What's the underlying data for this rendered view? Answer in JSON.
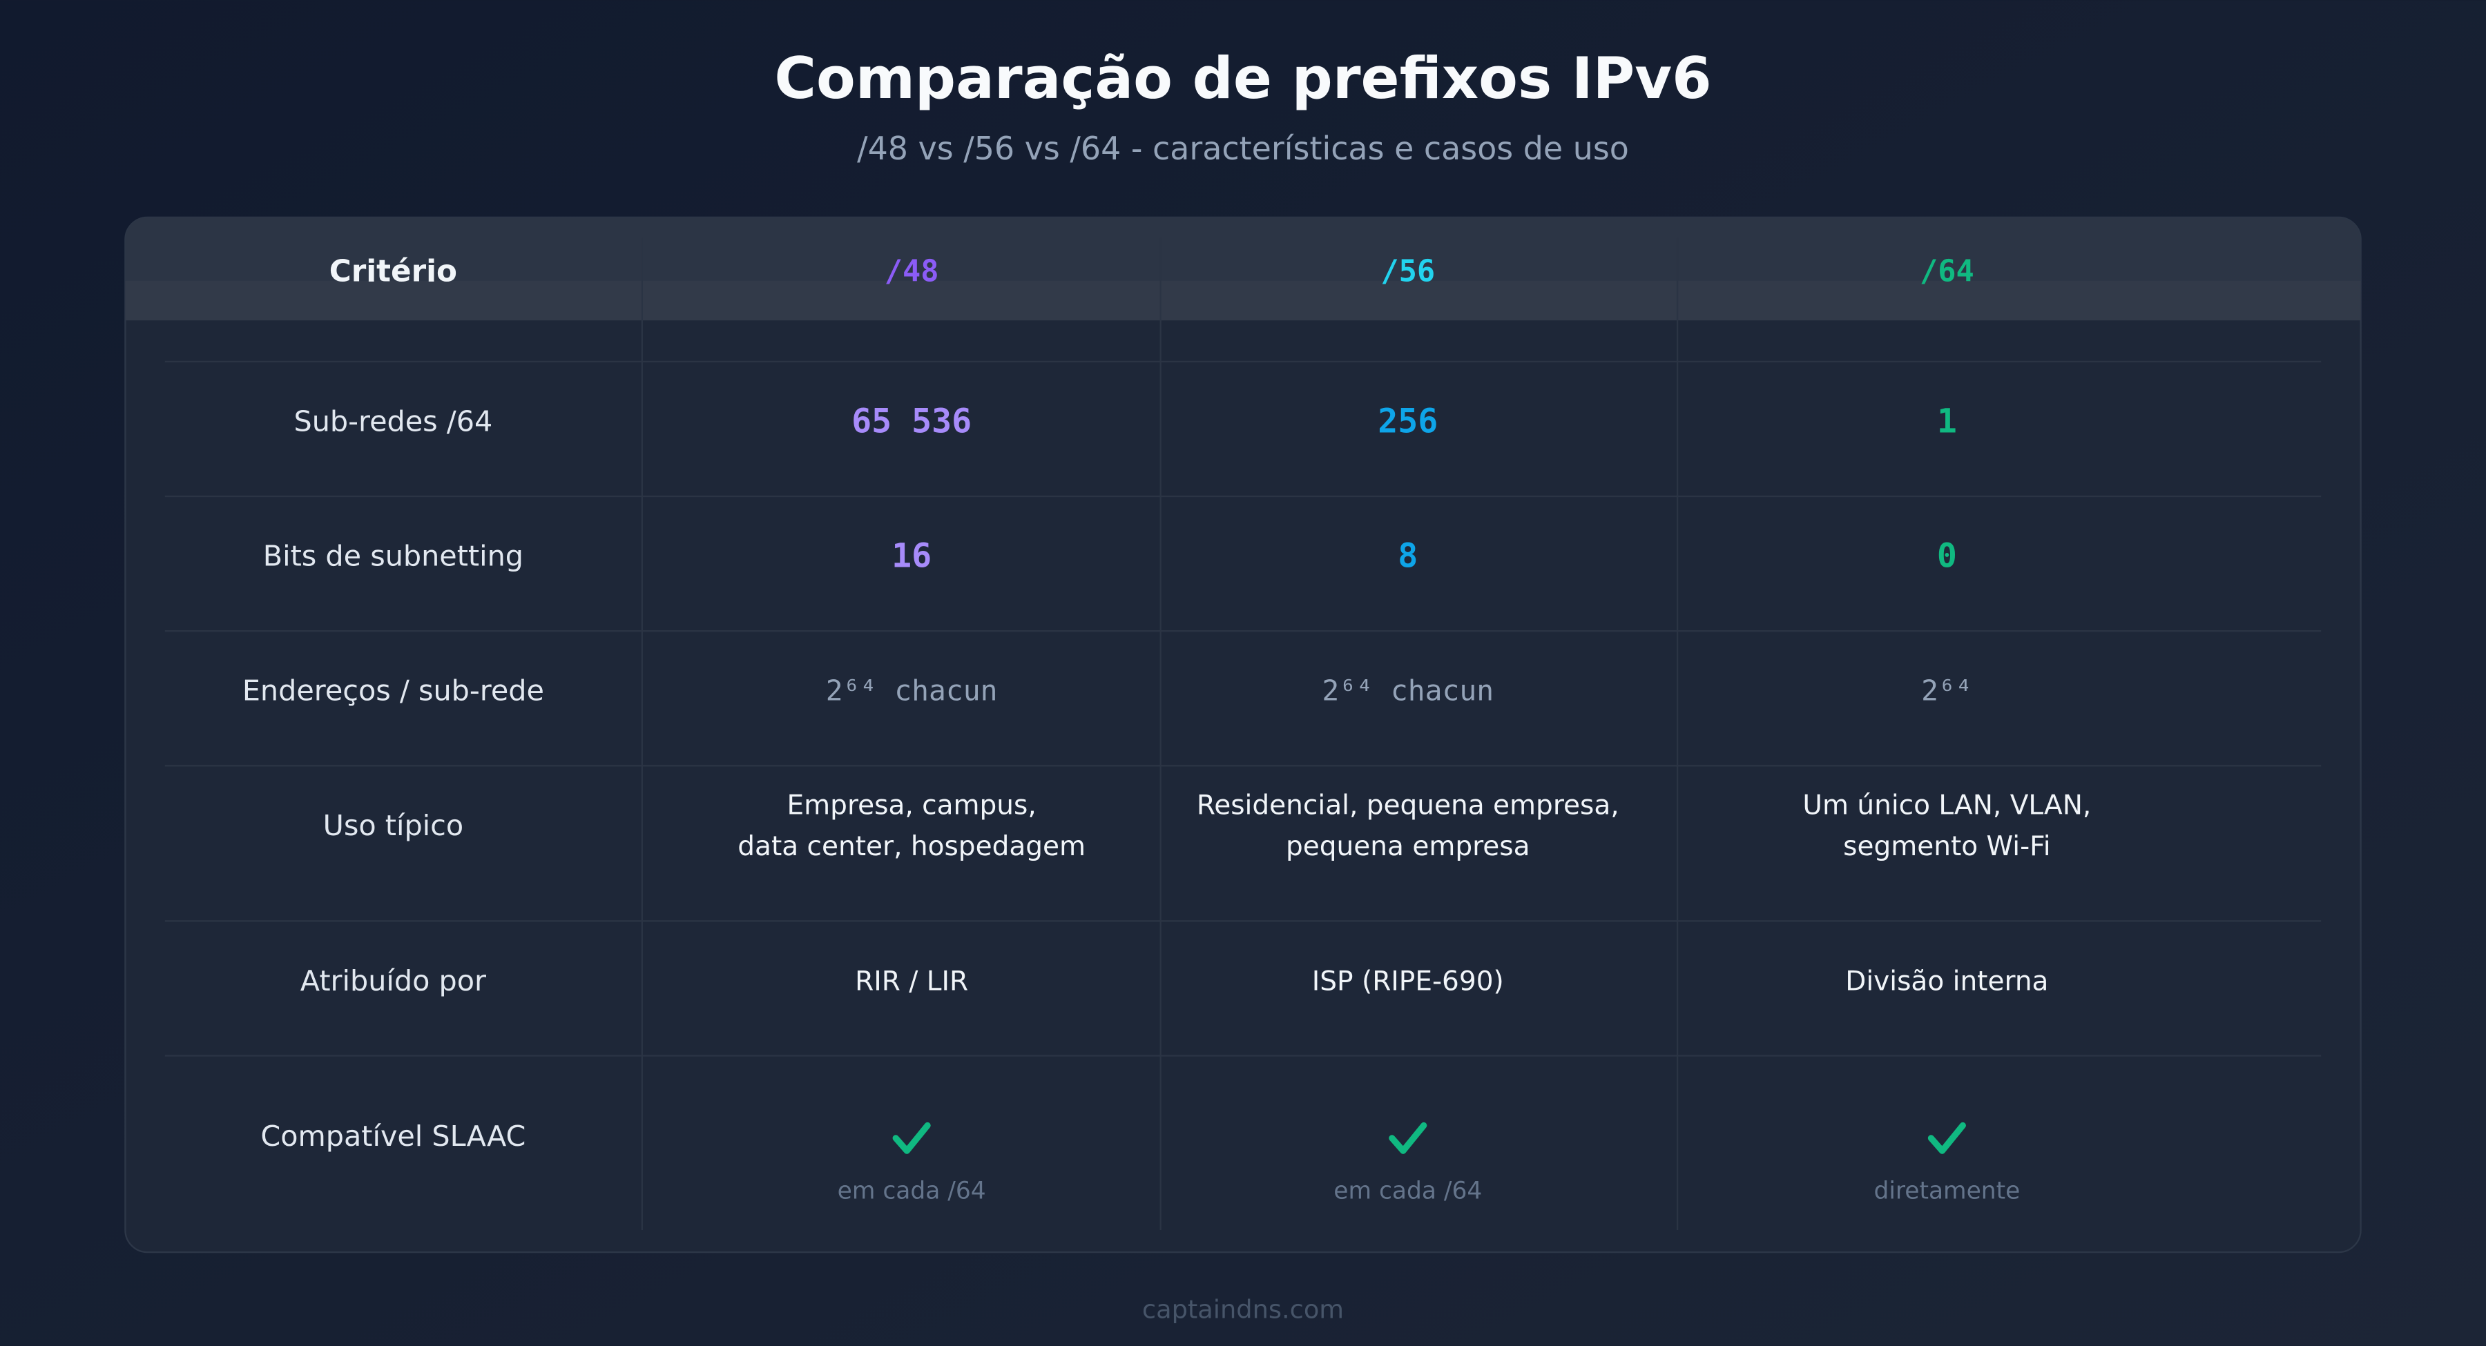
{
  "header": {
    "title": "Comparação de prefixos IPv6",
    "subtitle": "/48 vs /56 vs /64 - características e casos de uso"
  },
  "table": {
    "columns": [
      {
        "label": "Critério",
        "color": "#f1f5f9"
      },
      {
        "label": "/48",
        "color": "#8b5cf6"
      },
      {
        "label": "/56",
        "color": "#22d3ee"
      },
      {
        "label": "/64",
        "color": "#10b981"
      }
    ],
    "rows": [
      {
        "label": "Sub-redes /64",
        "font": "mono",
        "colors": [
          "#a78bfa",
          "#0ea5e9",
          "#10b981"
        ],
        "cells": [
          {
            "lines": [
              "65 536"
            ]
          },
          {
            "lines": [
              "256"
            ]
          },
          {
            "lines": [
              "1"
            ]
          }
        ]
      },
      {
        "label": "Bits de subnetting",
        "font": "mono",
        "colors": [
          "#a78bfa",
          "#0ea5e9",
          "#10b981"
        ],
        "cells": [
          {
            "lines": [
              "16"
            ]
          },
          {
            "lines": [
              "8"
            ]
          },
          {
            "lines": [
              "0"
            ]
          }
        ]
      },
      {
        "label": "Endereços / sub-rede",
        "font": "mono-muted",
        "colors": [
          "#94a3b8",
          "#94a3b8",
          "#94a3b8"
        ],
        "cells": [
          {
            "lines": [
              "2⁶⁴ chacun"
            ]
          },
          {
            "lines": [
              "2⁶⁴ chacun"
            ]
          },
          {
            "lines": [
              "2⁶⁴"
            ]
          }
        ]
      },
      {
        "label": "Uso típico",
        "font": "sans",
        "colors": [
          "#f1f5f9",
          "#f1f5f9",
          "#f1f5f9"
        ],
        "cells": [
          {
            "lines": [
              "Empresa, campus,",
              "data center, hospedagem"
            ]
          },
          {
            "lines": [
              "Residencial, pequena empresa,",
              "pequena empresa"
            ]
          },
          {
            "lines": [
              "Um único LAN, VLAN,",
              "segmento Wi-Fi"
            ]
          }
        ]
      },
      {
        "label": "Atribuído por",
        "font": "sans",
        "colors": [
          "#f1f5f9",
          "#f1f5f9",
          "#f1f5f9"
        ],
        "cells": [
          {
            "lines": [
              "RIR / LIR"
            ]
          },
          {
            "lines": [
              "ISP (RIPE-690)"
            ]
          },
          {
            "lines": [
              "Divisão interna"
            ]
          }
        ]
      },
      {
        "label": "Compatível SLAAC",
        "font": "check",
        "colors": [
          "#64748b",
          "#64748b",
          "#64748b"
        ],
        "cells": [
          {
            "check": true,
            "lines": [
              "em cada /64"
            ]
          },
          {
            "check": true,
            "lines": [
              "em cada /64"
            ]
          },
          {
            "check": true,
            "lines": [
              "diretamente"
            ]
          }
        ]
      }
    ]
  },
  "footer": "captaindns.com"
}
